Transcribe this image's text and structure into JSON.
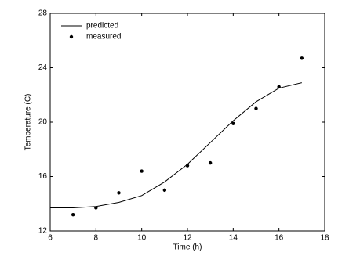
{
  "chart_data": {
    "type": "line",
    "x_label": "Time (h)",
    "y_label": "Temperature (C)",
    "x": [
      6,
      7,
      8,
      9,
      10,
      11,
      12,
      13,
      14,
      15,
      16,
      17
    ],
    "series": [
      {
        "name": "predicted",
        "color": "#000000",
        "mark": "line",
        "values": [
          13.7,
          13.7,
          13.8,
          14.1,
          14.6,
          15.6,
          16.9,
          18.5,
          20.1,
          21.5,
          22.5,
          22.9
        ]
      },
      {
        "name": "measured",
        "color": "#000000",
        "mark": "marker",
        "values": [
          null,
          13.2,
          13.7,
          14.8,
          16.4,
          15.0,
          16.8,
          17.0,
          19.9,
          21.0,
          22.6,
          24.7
        ]
      }
    ],
    "xlim": [
      6,
      18
    ],
    "xticks": [
      6,
      8,
      10,
      12,
      14,
      16,
      18
    ],
    "ylim": [
      12,
      28
    ],
    "yticks": [
      12,
      16,
      20,
      24,
      28
    ],
    "grid": false,
    "legend": "upper-left"
  }
}
